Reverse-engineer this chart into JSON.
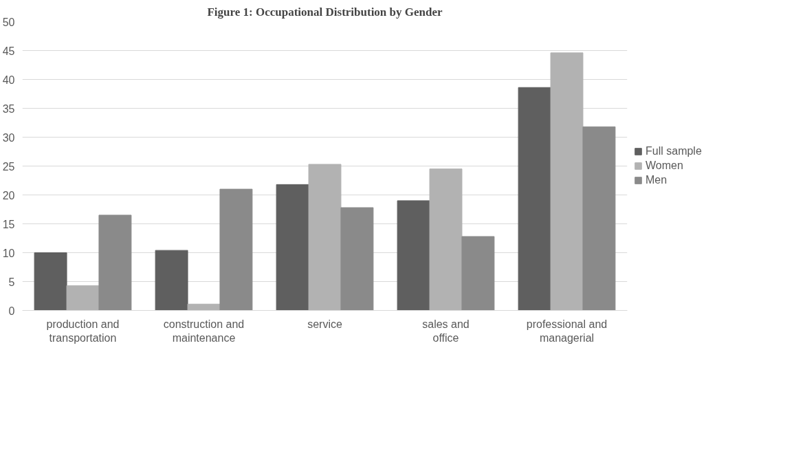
{
  "chart_data": {
    "type": "bar",
    "title": "Figure 1: Occupational Distribution by Gender",
    "categories": [
      "production and transportation",
      "construction and maintenance",
      "service",
      "sales and office",
      "professional and managerial"
    ],
    "series": [
      {
        "name": "Full sample",
        "color": "#5f5f5f",
        "values": [
          10.0,
          10.4,
          21.8,
          19.0,
          38.6
        ]
      },
      {
        "name": "Women",
        "color": "#b2b2b2",
        "values": [
          4.3,
          1.1,
          25.3,
          24.5,
          44.6
        ]
      },
      {
        "name": "Men",
        "color": "#8a8a8a",
        "values": [
          16.5,
          21.0,
          17.8,
          12.8,
          31.8
        ]
      }
    ],
    "ylim": [
      0,
      50
    ],
    "yticks": [
      0,
      5,
      10,
      15,
      20,
      25,
      30,
      35,
      40,
      45,
      50
    ],
    "grid": "y",
    "legend": "right"
  }
}
